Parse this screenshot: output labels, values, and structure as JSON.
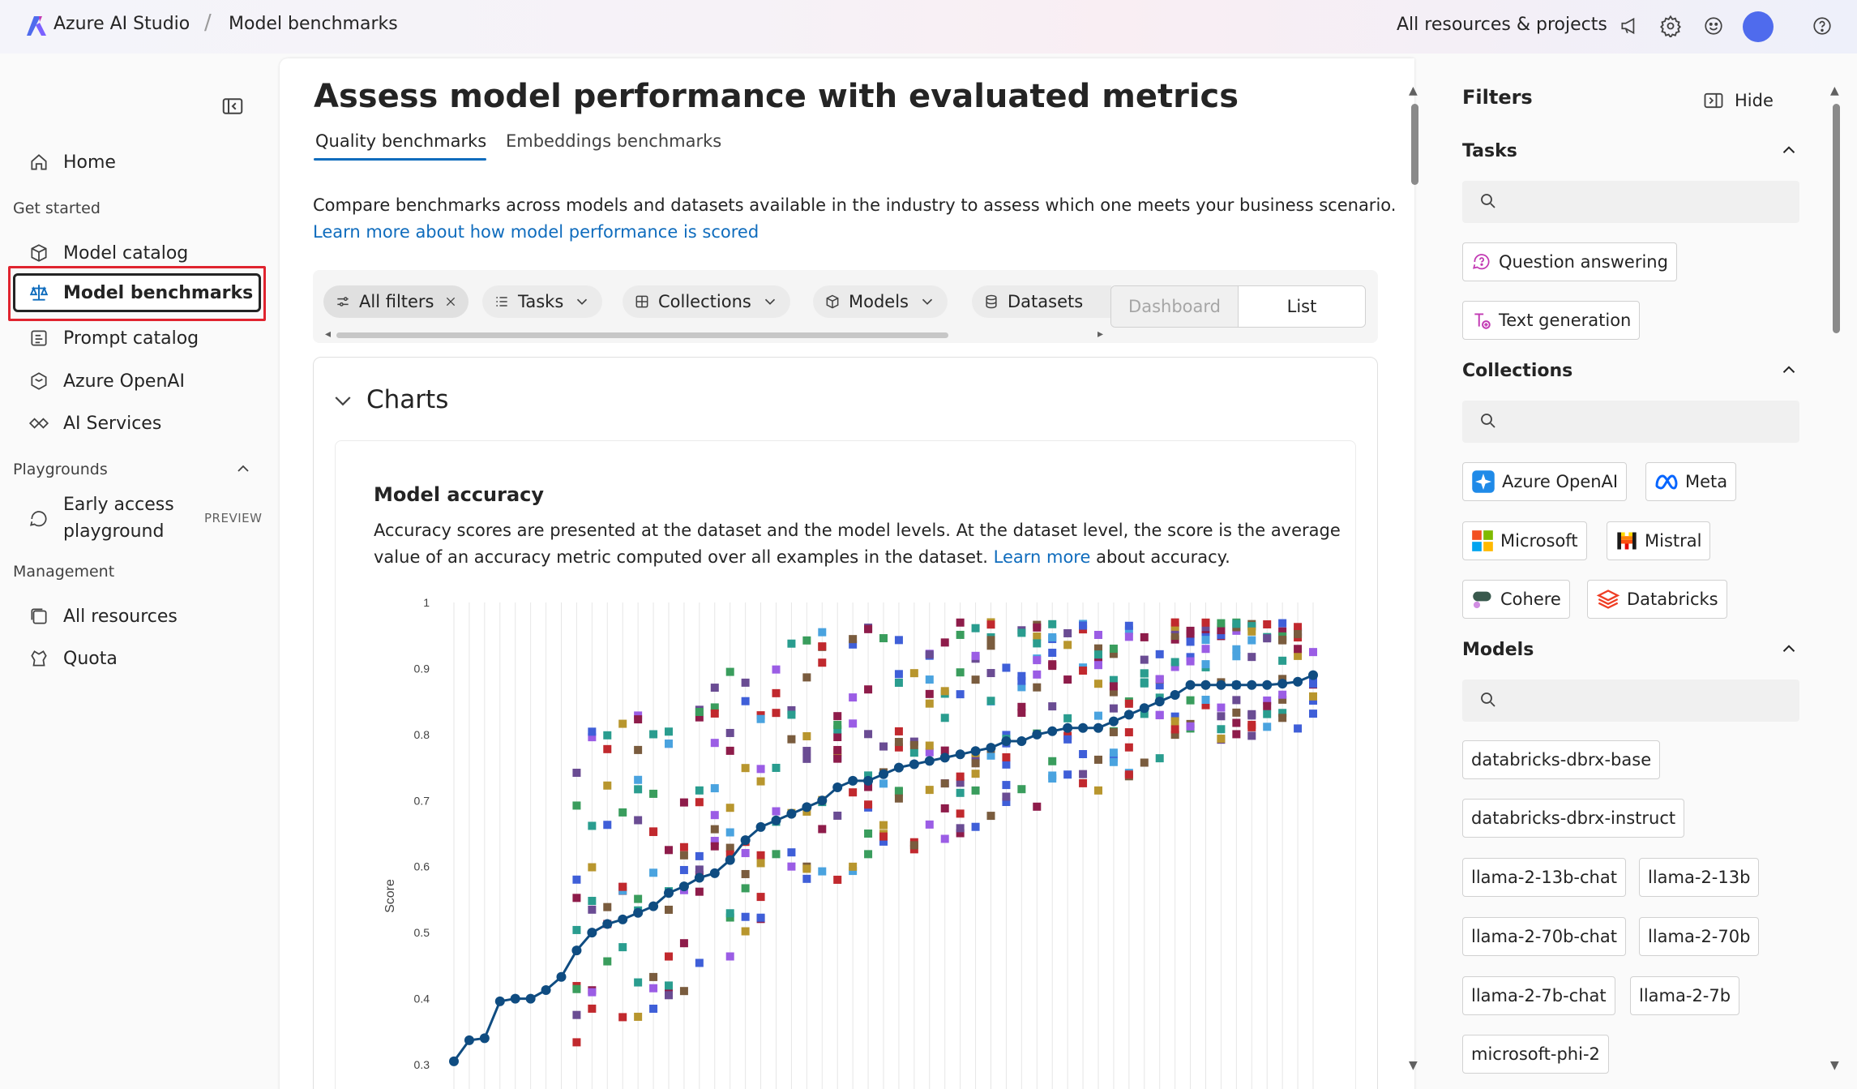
{
  "topbar": {
    "app_title": "Azure AI Studio",
    "breadcrumb": "Model benchmarks",
    "resources_link": "All resources & projects"
  },
  "sidebar": {
    "home": "Home",
    "get_started": "Get started",
    "model_catalog": "Model catalog",
    "model_benchmarks": "Model benchmarks",
    "prompt_catalog": "Prompt catalog",
    "azure_openai": "Azure OpenAI",
    "ai_services": "AI Services",
    "playgrounds": "Playgrounds",
    "early_access_line1": "Early access",
    "early_access_line2": "playground",
    "preview_badge": "PREVIEW",
    "management": "Management",
    "all_resources": "All resources",
    "quota": "Quota"
  },
  "main": {
    "title": "Assess model performance with evaluated metrics",
    "tabs": [
      {
        "label": "Quality benchmarks",
        "selected": true
      },
      {
        "label": "Embeddings benchmarks",
        "selected": false
      }
    ],
    "description": "Compare benchmarks across models and datasets available in the industry to assess which one meets your business scenario.",
    "learn_link": "Learn more about how model performance is scored",
    "filters": {
      "all_filters": "All filters",
      "tasks": "Tasks",
      "collections": "Collections",
      "models": "Models",
      "datasets": "Datasets"
    },
    "view_toggle": {
      "dashboard": "Dashboard",
      "list": "List",
      "selected": "list"
    },
    "charts_heading": "Charts",
    "chart": {
      "title": "Model accuracy",
      "desc_part1": "Accuracy scores are presented at the dataset and the model levels. At the dataset level, the score is the average value of an accuracy metric computed over all examples in the dataset.",
      "desc_link": "Learn more",
      "desc_part2": "about accuracy."
    }
  },
  "filters_panel": {
    "title": "Filters",
    "hide": "Hide",
    "tasks_heading": "Tasks",
    "tasks": [
      "Question answering",
      "Text generation"
    ],
    "collections_heading": "Collections",
    "collections": [
      "Azure OpenAI",
      "Meta",
      "Microsoft",
      "Mistral",
      "Cohere",
      "Databricks"
    ],
    "models_heading": "Models",
    "models": [
      "databricks-dbrx-base",
      "databricks-dbrx-instruct",
      "llama-2-13b-chat",
      "llama-2-13b",
      "llama-2-70b-chat",
      "llama-2-70b",
      "llama-2-7b-chat",
      "llama-2-7b",
      "microsoft-phi-2"
    ]
  },
  "chart_data": {
    "type": "scatter",
    "title": "",
    "xlabel": "",
    "ylabel": "Score",
    "ylim": [
      0.3,
      1.0
    ],
    "yticks": [
      "1",
      "0.9",
      "0.8",
      "0.7",
      "0.6",
      "0.5",
      "0.4",
      "0.3"
    ],
    "series": [
      {
        "type": "line",
        "color": "#0f4c81",
        "values": [
          0.305,
          0.337,
          0.34,
          0.396,
          0.4,
          0.4,
          0.413,
          0.433,
          0.473,
          0.5,
          0.513,
          0.52,
          0.53,
          0.54,
          0.56,
          0.57,
          0.583,
          0.59,
          0.61,
          0.64,
          0.66,
          0.67,
          0.68,
          0.69,
          0.7,
          0.72,
          0.73,
          0.73,
          0.74,
          0.75,
          0.755,
          0.76,
          0.765,
          0.77,
          0.775,
          0.78,
          0.79,
          0.79,
          0.8,
          0.805,
          0.81,
          0.81,
          0.81,
          0.82,
          0.83,
          0.84,
          0.85,
          0.86,
          0.875,
          0.875,
          0.875,
          0.875,
          0.875,
          0.875,
          0.877,
          0.88,
          0.89
        ]
      }
    ]
  }
}
